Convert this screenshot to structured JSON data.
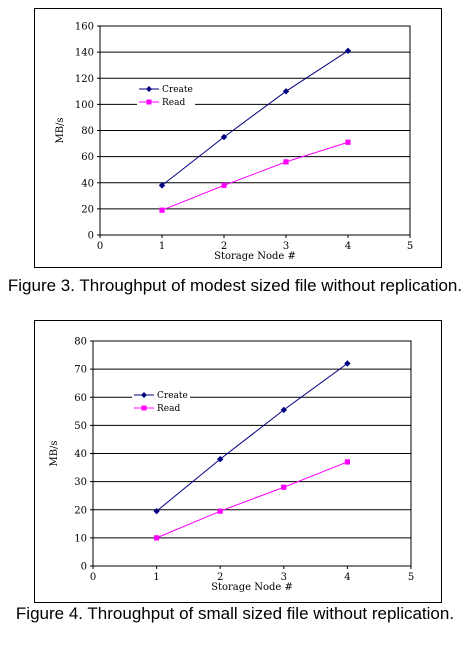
{
  "chart_data": [
    {
      "type": "line",
      "title": "",
      "xlabel": "Storage Node #",
      "ylabel": "MB/s",
      "xlim": [
        0,
        5
      ],
      "ylim": [
        0,
        160
      ],
      "xticks": [
        "0",
        "1",
        "2",
        "3",
        "4",
        "5"
      ],
      "yticks": [
        "0",
        "20",
        "40",
        "60",
        "80",
        "100",
        "120",
        "140",
        "160"
      ],
      "grid": "horizontal",
      "legend_position": "top-left",
      "x": [
        1,
        2,
        3,
        4
      ],
      "series": [
        {
          "name": "Create",
          "values": [
            38,
            75,
            110,
            141
          ],
          "color": "#000080",
          "marker": "diamond"
        },
        {
          "name": "Read",
          "values": [
            19,
            38,
            56,
            71
          ],
          "color": "#ff00ff",
          "marker": "square"
        }
      ]
    },
    {
      "type": "line",
      "title": "",
      "xlabel": "Storage Node #",
      "ylabel": "MB/s",
      "xlim": [
        0,
        5
      ],
      "ylim": [
        0,
        80
      ],
      "xticks": [
        "0",
        "1",
        "2",
        "3",
        "4",
        "5"
      ],
      "yticks": [
        "0",
        "10",
        "20",
        "30",
        "40",
        "50",
        "60",
        "70",
        "80"
      ],
      "grid": "horizontal",
      "legend_position": "top-left",
      "x": [
        1,
        2,
        3,
        4
      ],
      "series": [
        {
          "name": "Create",
          "values": [
            19.5,
            38,
            55.5,
            72
          ],
          "color": "#000080",
          "marker": "diamond"
        },
        {
          "name": "Read",
          "values": [
            10,
            19.5,
            28,
            37
          ],
          "color": "#ff00ff",
          "marker": "square"
        }
      ]
    }
  ],
  "captions": [
    "Figure 3. Throughput of modest sized file without replication.",
    "Figure 4. Throughput of small sized file without replication."
  ]
}
